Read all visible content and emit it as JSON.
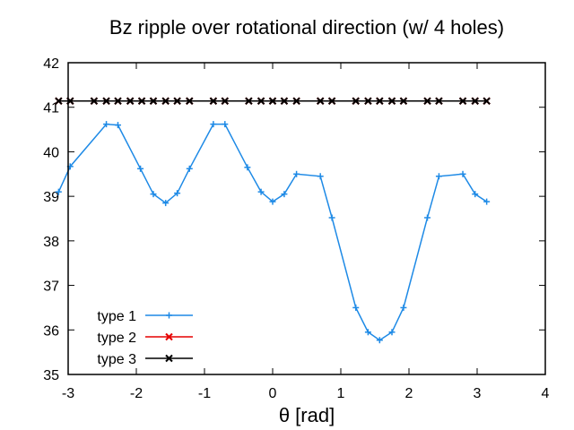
{
  "chart_data": {
    "type": "line",
    "title": "Bz ripple over rotational direction (w/ 4 holes)",
    "xlabel": "θ [rad]",
    "ylabel": "",
    "xlim": [
      -3,
      4
    ],
    "ylim": [
      35,
      42
    ],
    "xticks": [
      "-3",
      "-2",
      "-1",
      "0",
      "1",
      "2",
      "3",
      "4"
    ],
    "yticks": [
      "35",
      "36",
      "37",
      "38",
      "39",
      "40",
      "41",
      "42"
    ],
    "grid": false,
    "legend_position": "bottom-left",
    "series": [
      {
        "name": "type 1",
        "color": "#1e8ae6",
        "marker": "plus",
        "x": [
          -3.14,
          -2.97,
          -2.44,
          -2.27,
          -1.94,
          -1.75,
          -1.57,
          -1.4,
          -1.22,
          -0.87,
          -0.7,
          -0.37,
          -0.17,
          0.0,
          0.17,
          0.35,
          0.7,
          0.87,
          1.22,
          1.4,
          1.57,
          1.75,
          1.92,
          2.27,
          2.44,
          2.79,
          2.97,
          3.14
        ],
        "y": [
          39.1,
          39.67,
          40.62,
          40.6,
          39.62,
          39.05,
          38.85,
          39.07,
          39.62,
          40.62,
          40.62,
          39.65,
          39.1,
          38.88,
          39.05,
          39.5,
          39.45,
          38.52,
          36.5,
          35.95,
          35.77,
          35.95,
          36.5,
          38.52,
          39.45,
          39.5,
          39.05,
          38.88
        ]
      },
      {
        "name": "type 2",
        "color": "#e60000",
        "marker": "cross",
        "x": [
          -3.14,
          -2.97,
          -2.62,
          -2.44,
          -2.27,
          -2.09,
          -1.92,
          -1.75,
          -1.57,
          -1.4,
          -1.22,
          -0.87,
          -0.7,
          -0.35,
          -0.17,
          0.0,
          0.17,
          0.35,
          0.7,
          0.87,
          1.22,
          1.4,
          1.57,
          1.75,
          1.92,
          2.27,
          2.44,
          2.79,
          2.97,
          3.14
        ],
        "y": [
          41.14,
          41.14,
          41.14,
          41.14,
          41.14,
          41.14,
          41.14,
          41.14,
          41.14,
          41.14,
          41.14,
          41.14,
          41.14,
          41.14,
          41.14,
          41.14,
          41.14,
          41.14,
          41.14,
          41.14,
          41.14,
          41.14,
          41.14,
          41.14,
          41.14,
          41.14,
          41.14,
          41.14,
          41.14,
          41.14
        ]
      },
      {
        "name": "type 3",
        "color": "#000000",
        "marker": "cross",
        "x": [
          -3.14,
          -2.97,
          -2.62,
          -2.44,
          -2.27,
          -2.09,
          -1.92,
          -1.75,
          -1.57,
          -1.4,
          -1.22,
          -0.87,
          -0.7,
          -0.35,
          -0.17,
          0.0,
          0.17,
          0.35,
          0.7,
          0.87,
          1.22,
          1.4,
          1.57,
          1.75,
          1.92,
          2.27,
          2.44,
          2.79,
          2.97,
          3.14
        ],
        "y": [
          41.14,
          41.14,
          41.14,
          41.14,
          41.14,
          41.14,
          41.14,
          41.14,
          41.14,
          41.14,
          41.14,
          41.14,
          41.14,
          41.14,
          41.14,
          41.14,
          41.14,
          41.14,
          41.14,
          41.14,
          41.14,
          41.14,
          41.14,
          41.14,
          41.14,
          41.14,
          41.14,
          41.14,
          41.14,
          41.14
        ]
      }
    ]
  }
}
